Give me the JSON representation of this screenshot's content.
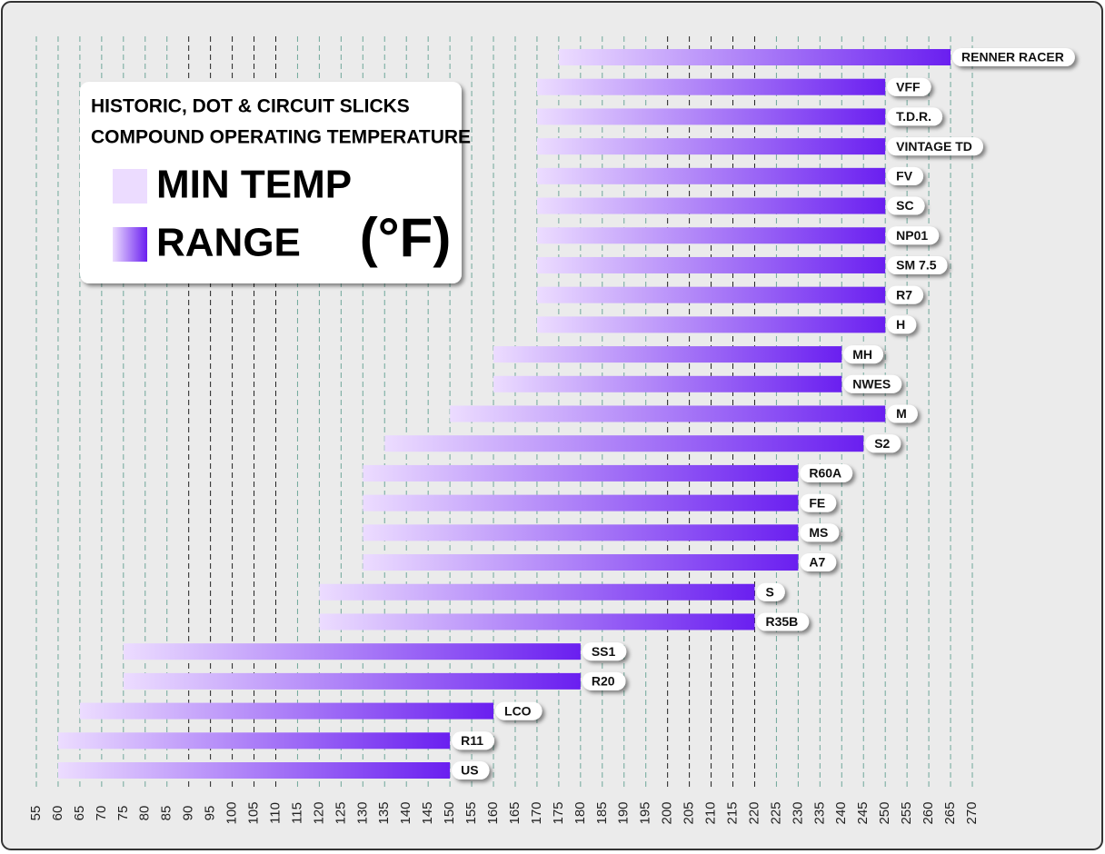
{
  "chart_data": {
    "type": "range_bar",
    "title": "HISTORIC, DOT & CIRCUIT SLICKS",
    "subtitle": "COMPOUND OPERATING TEMPERATURE",
    "unit": "(°F)",
    "legend": {
      "min": "MIN TEMP",
      "range": "RANGE"
    },
    "min_color": "#ecdcff",
    "max_color": "#6a1ff0",
    "categories": [
      "RENNER RACER",
      "VFF",
      "T.D.R.",
      "VINTAGE TD",
      "FV",
      "SC",
      "NP01",
      "SM 7.5",
      "R7",
      "H",
      "MH",
      "NWES",
      "M",
      "S2",
      "R60A",
      "FE",
      "MS",
      "A7",
      "S",
      "R35B",
      "SS1",
      "R20",
      "LCO",
      "R11",
      "US"
    ],
    "min": [
      175,
      170,
      170,
      170,
      170,
      170,
      170,
      170,
      170,
      170,
      160,
      160,
      150,
      135,
      130,
      130,
      130,
      130,
      120,
      120,
      75,
      75,
      65,
      60,
      60
    ],
    "max": [
      265,
      250,
      250,
      250,
      250,
      250,
      250,
      250,
      250,
      250,
      240,
      240,
      250,
      245,
      230,
      230,
      230,
      230,
      220,
      220,
      180,
      180,
      160,
      150,
      150
    ],
    "xlim": [
      55,
      270
    ],
    "xticks": [
      55,
      60,
      65,
      70,
      75,
      80,
      85,
      90,
      95,
      100,
      105,
      110,
      115,
      120,
      125,
      130,
      135,
      140,
      145,
      150,
      155,
      160,
      165,
      170,
      175,
      180,
      185,
      190,
      195,
      200,
      205,
      210,
      215,
      220,
      225,
      230,
      235,
      240,
      245,
      250,
      255,
      260,
      265,
      270
    ],
    "grid": true,
    "grid_color": "#6fa79a",
    "dark_grid": [
      [
        90,
        110
      ],
      [
        200,
        220
      ]
    ]
  }
}
